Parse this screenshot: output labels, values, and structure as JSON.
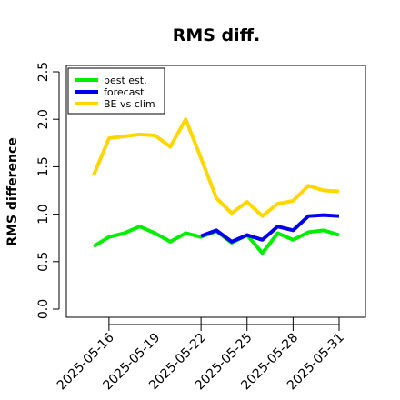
{
  "chart_data": {
    "type": "line",
    "title": "RMS diff.",
    "xlabel": "",
    "ylabel": "RMS difference",
    "x": [
      "2025-05-15",
      "2025-05-16",
      "2025-05-17",
      "2025-05-18",
      "2025-05-19",
      "2025-05-20",
      "2025-05-21",
      "2025-05-22",
      "2025-05-23",
      "2025-05-24",
      "2025-05-25",
      "2025-05-26",
      "2025-05-27",
      "2025-05-28",
      "2025-05-29",
      "2025-05-30",
      "2025-05-31"
    ],
    "x_ticks": [
      "2025-05-16",
      "2025-05-19",
      "2025-05-22",
      "2025-05-25",
      "2025-05-28",
      "2025-05-31"
    ],
    "highlight_tick": "2025-05-22",
    "ylim": [
      0,
      2.5
    ],
    "y_ticks": [
      "0.0",
      "0.5",
      "1.0",
      "1.5",
      "2.0",
      "2.5"
    ],
    "legend_position": "top-left",
    "series": [
      {
        "name": "best est.",
        "color": "#00ee00",
        "values": [
          0.66,
          0.76,
          0.8,
          0.87,
          0.8,
          0.71,
          0.8,
          0.76,
          0.82,
          0.7,
          0.78,
          0.59,
          0.8,
          0.73,
          0.81,
          0.83,
          0.78
        ]
      },
      {
        "name": "forecast",
        "color": "#0000ee",
        "values": [
          null,
          null,
          null,
          null,
          null,
          null,
          null,
          0.77,
          0.83,
          0.71,
          0.78,
          0.73,
          0.87,
          0.83,
          0.98,
          0.99,
          0.98
        ]
      },
      {
        "name": "BE vs clim",
        "color": "#ffd700",
        "values": [
          1.41,
          1.8,
          1.82,
          1.84,
          1.83,
          1.71,
          2.0,
          1.59,
          1.17,
          1.01,
          1.13,
          0.98,
          1.11,
          1.14,
          1.3,
          1.25,
          1.24
        ]
      }
    ],
    "highlight_color": "#228b22"
  }
}
